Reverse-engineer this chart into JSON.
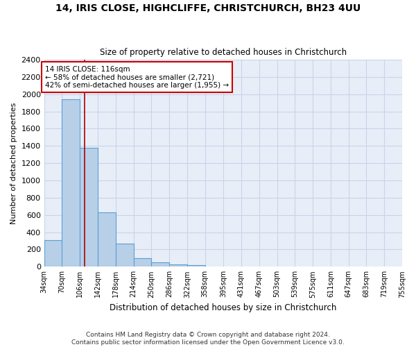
{
  "title1": "14, IRIS CLOSE, HIGHCLIFFE, CHRISTCHURCH, BH23 4UU",
  "title2": "Size of property relative to detached houses in Christchurch",
  "xlabel": "Distribution of detached houses by size in Christchurch",
  "ylabel": "Number of detached properties",
  "bar_edges": [
    34,
    70,
    106,
    142,
    178,
    214,
    250,
    286,
    322,
    358,
    395,
    431,
    467,
    503,
    539,
    575,
    611,
    647,
    683,
    719,
    755
  ],
  "bar_heights": [
    310,
    1940,
    1380,
    630,
    270,
    100,
    50,
    30,
    20,
    0,
    0,
    0,
    0,
    0,
    0,
    0,
    0,
    0,
    0,
    0
  ],
  "bar_color": "#b8cfe8",
  "bar_edgecolor": "#5a9fd4",
  "property_line_x": 116,
  "property_line_color": "#aa0000",
  "annotation_text_line1": "14 IRIS CLOSE: 116sqm",
  "annotation_text_line2": "← 58% of detached houses are smaller (2,721)",
  "annotation_text_line3": "42% of semi-detached houses are larger (1,955) →",
  "annotation_box_color": "#cc0000",
  "ylim": [
    0,
    2400
  ],
  "yticks": [
    0,
    200,
    400,
    600,
    800,
    1000,
    1200,
    1400,
    1600,
    1800,
    2000,
    2200,
    2400
  ],
  "tick_labels": [
    "34sqm",
    "70sqm",
    "106sqm",
    "142sqm",
    "178sqm",
    "214sqm",
    "250sqm",
    "286sqm",
    "322sqm",
    "358sqm",
    "395sqm",
    "431sqm",
    "467sqm",
    "503sqm",
    "539sqm",
    "575sqm",
    "611sqm",
    "647sqm",
    "683sqm",
    "719sqm",
    "755sqm"
  ],
  "footer": "Contains HM Land Registry data © Crown copyright and database right 2024.\nContains public sector information licensed under the Open Government Licence v3.0.",
  "grid_color": "#c8d4e8",
  "background_color": "#e8eef8"
}
